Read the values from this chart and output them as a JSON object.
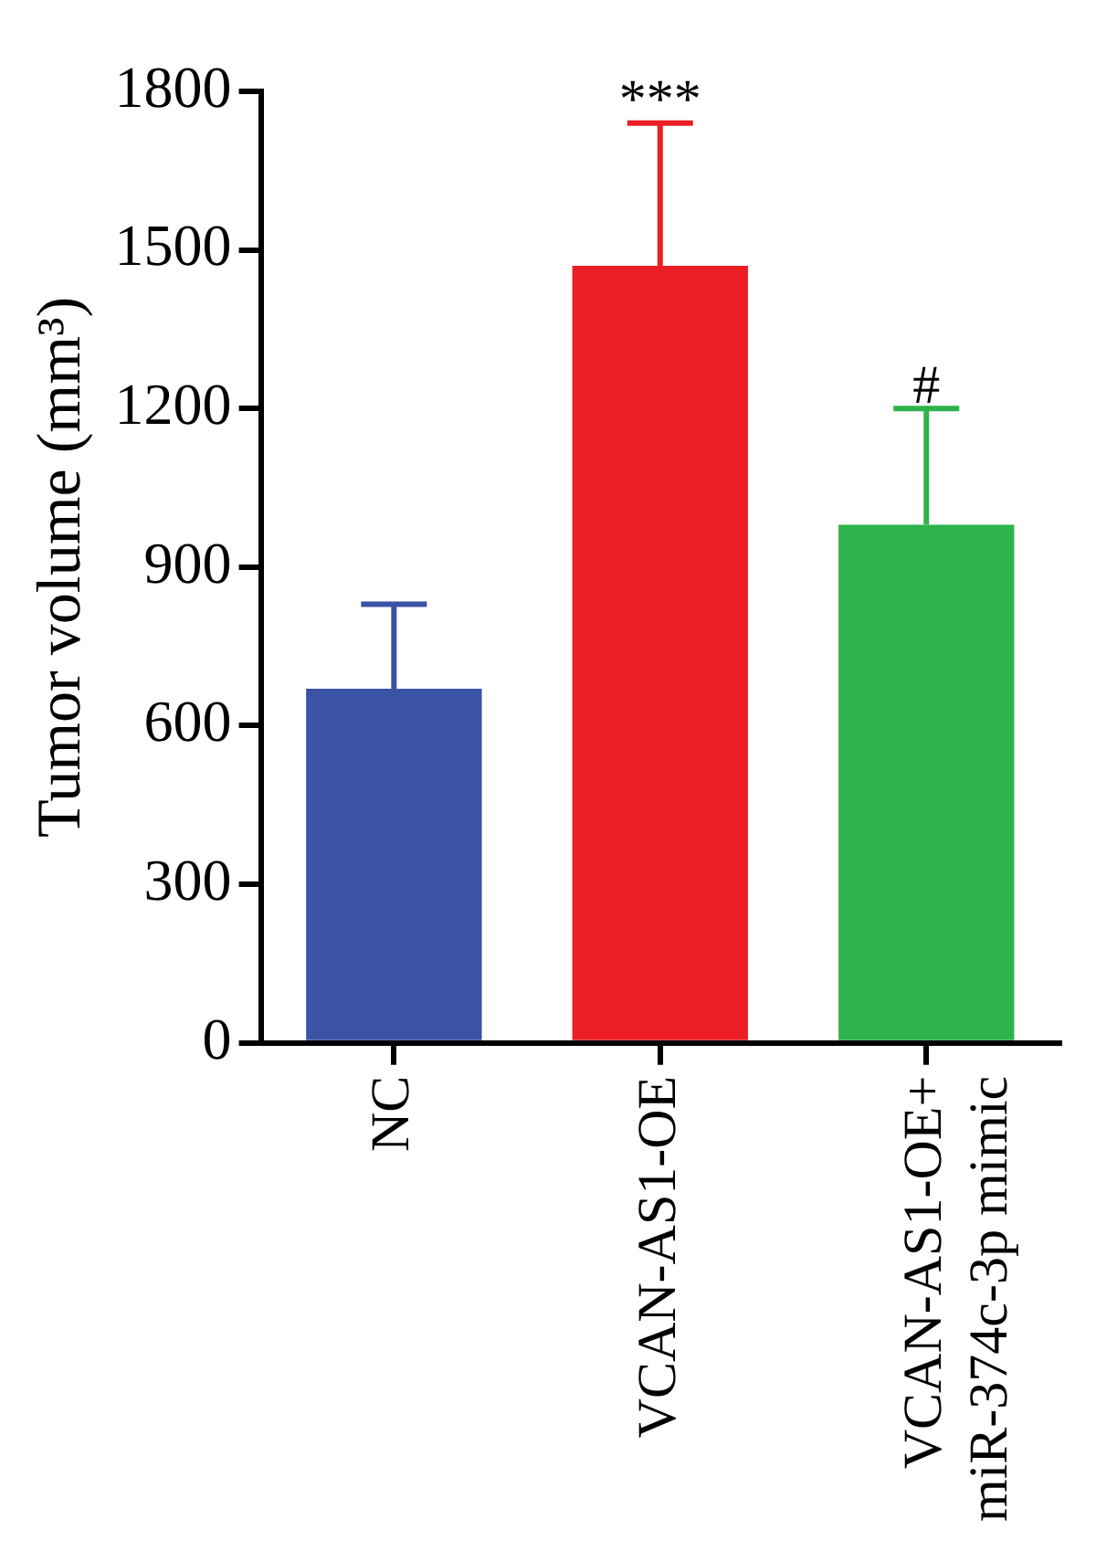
{
  "chart_data": {
    "type": "bar",
    "ylabel": "Tumor volume (mm³)",
    "categories": [
      "NC",
      "VCAN-AS1-OE",
      "VCAN-AS1-OE+ miR-374c-3p mimic"
    ],
    "values": [
      670,
      1470,
      980
    ],
    "errors": [
      160,
      270,
      220
    ],
    "colors": [
      "#3a53a4",
      "#ec1f26",
      "#2db34a"
    ],
    "ylim": [
      0,
      1800
    ],
    "yticks": [
      0,
      300,
      600,
      900,
      1200,
      1500,
      1800
    ],
    "grid": false,
    "legend": false,
    "annotations": [
      {
        "text": "***",
        "x": "VCAN-AS1-OE",
        "y": 1740
      },
      {
        "text": "#",
        "x": "VCAN-AS1-OE+ miR-374c-3p mimic",
        "y": 1200
      }
    ]
  }
}
